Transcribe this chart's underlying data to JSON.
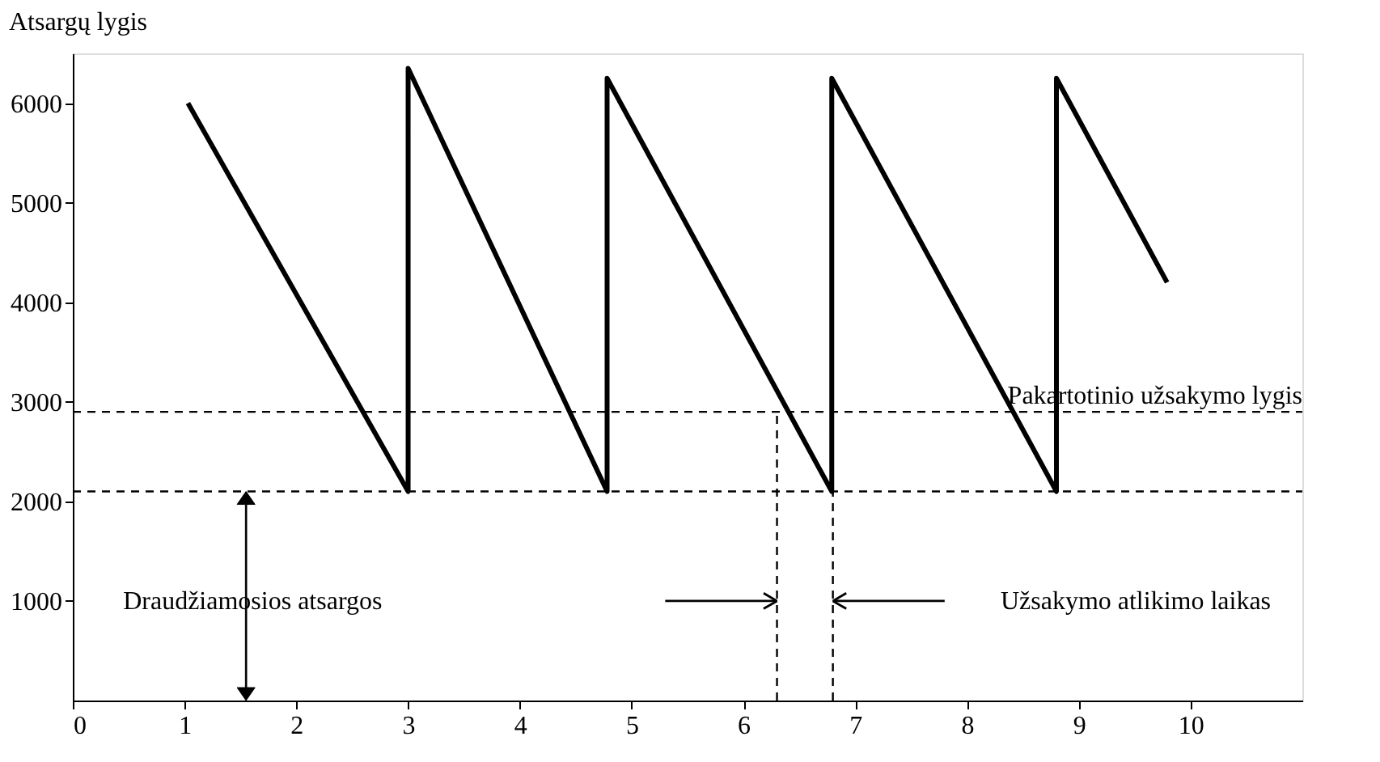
{
  "chart_data": {
    "type": "line",
    "ylabel": "Atsargų lygis",
    "x": [
      1.03,
      3.0,
      3.0,
      4.78,
      4.78,
      6.79,
      6.79,
      8.8,
      8.8,
      9.79
    ],
    "series": [
      {
        "color": "#000000",
        "values": [
          6000,
          2100,
          6350,
          2100,
          6250,
          2100,
          6250,
          2100,
          6250,
          4200
        ]
      }
    ],
    "xlim": [
      0,
      11
    ],
    "xticks": [
      0,
      1,
      2,
      3,
      4,
      5,
      6,
      7,
      8,
      9,
      10
    ],
    "ylim": [
      0,
      6500
    ],
    "yticks": [
      1000,
      2000,
      3000,
      4000,
      5000,
      6000
    ],
    "grid": false,
    "marker": "none",
    "line_style": "solid",
    "ref_lines": [
      {
        "axis": "y",
        "value": 2900,
        "label": "Pakartotinio užsakymo lygis",
        "color": "#000000",
        "line_style": "dashed"
      },
      {
        "axis": "y",
        "value": 2100,
        "color": "#000000",
        "line_style": "dashed"
      },
      {
        "axis": "x",
        "value": 6.3,
        "color": "#000000",
        "line_style": "dashed"
      },
      {
        "axis": "x",
        "value": 6.8,
        "color": "#000000",
        "line_style": "dashed"
      }
    ],
    "annotations": [
      "Draudžiamosios atsargos",
      "Užsakymo atlikimo laikas"
    ]
  }
}
